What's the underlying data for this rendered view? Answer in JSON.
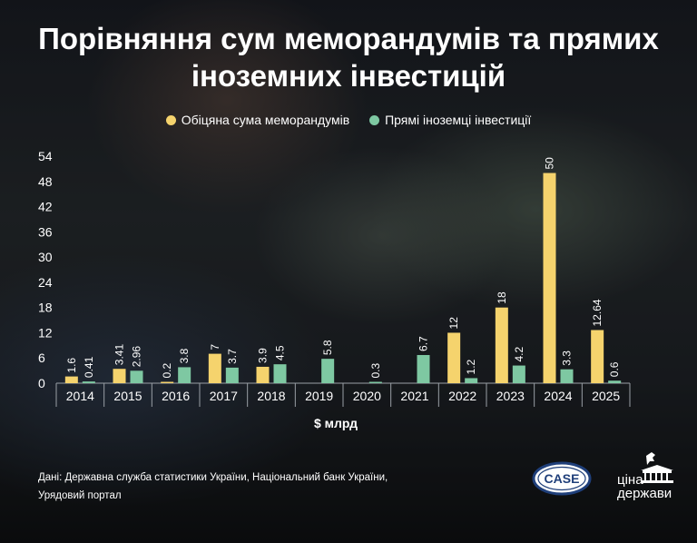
{
  "title_lines": [
    "Порівняння сум меморандумів та прямих",
    "іноземних інвестицій"
  ],
  "legend": [
    {
      "label": "Обіцяна сума меморандумів",
      "color": "#f5d36d"
    },
    {
      "label": "Прямі іноземці інвестиції",
      "color": "#7ec8a2"
    }
  ],
  "chart_data": {
    "type": "bar",
    "categories": [
      "2014",
      "2015",
      "2016",
      "2017",
      "2018",
      "2019",
      "2020",
      "2021",
      "2022",
      "2023",
      "2024",
      "2025"
    ],
    "series": [
      {
        "name": "Обіцяна сума меморандумів",
        "color": "#f5d36d",
        "values": [
          1.6,
          3.41,
          0.2,
          7,
          3.9,
          null,
          null,
          null,
          12,
          18,
          50,
          12.64
        ],
        "labels": [
          "1.6",
          "3.41",
          "0.2",
          "7",
          "3.9",
          "",
          "",
          "",
          "12",
          "18",
          "50",
          "12.64"
        ]
      },
      {
        "name": "Прямі іноземці інвестиції",
        "color": "#7ec8a2",
        "values": [
          0.41,
          2.96,
          3.8,
          3.7,
          4.5,
          5.8,
          0.3,
          6.7,
          1.2,
          4.2,
          3.3,
          0.6
        ],
        "labels": [
          "0.41",
          "2.96",
          "3.8",
          "3.7",
          "4.5",
          "5.8",
          "0.3",
          "6.7",
          "1.2",
          "4.2",
          "3.3",
          "0.6"
        ]
      }
    ],
    "yticks": [
      "0",
      "6",
      "12",
      "18",
      "24",
      "30",
      "36",
      "42",
      "48",
      "54"
    ],
    "ylim": [
      0,
      54
    ],
    "xlabel": "$ млрд",
    "grid": false,
    "legend_position": "top-center"
  },
  "source": [
    "Дані: Державна служба статистики України, Національний банк України,",
    "Урядовий портал"
  ],
  "logos": {
    "case": "CASE",
    "cina_line1": "ціна",
    "cina_line2": "держави"
  },
  "icons": [
    "case-logo-icon",
    "cina-derzhavy-logo-icon"
  ]
}
